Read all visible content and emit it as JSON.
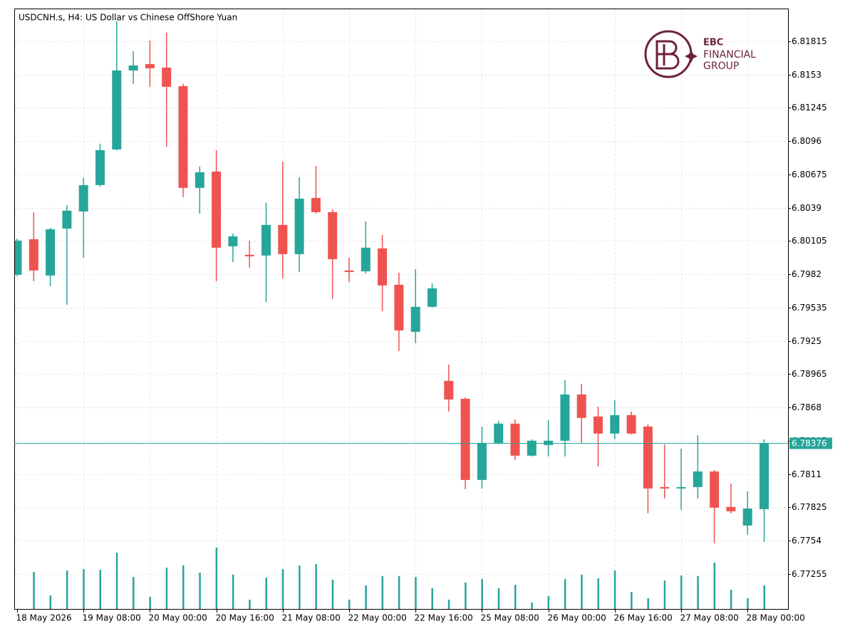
{
  "chart_data": {
    "type": "candlestick",
    "title": "USDCNH.s, H4:  US Dollar vs Chinese OffShore Yuan",
    "logo": {
      "name": "EBC",
      "line1": "FINANCIAL",
      "line2": "GROUP"
    },
    "categories": [
      "18 May 2026",
      null,
      null,
      null,
      "19 May 08:00",
      null,
      null,
      null,
      "20 May 00:00",
      null,
      null,
      null,
      "20 May 16:00",
      null,
      null,
      null,
      "21 May 08:00",
      null,
      null,
      null,
      "22 May 00:00",
      null,
      null,
      null,
      "22 May 16:00",
      null,
      null,
      null,
      "25 May 08:00",
      null,
      null,
      null,
      "26 May 00:00",
      null,
      null,
      null,
      "26 May 16:00",
      null,
      null,
      null,
      "27 May 08:00",
      null,
      null,
      null,
      "28 May 00:00",
      null
    ],
    "open": [
      6.79816,
      6.80121,
      6.7981,
      6.80212,
      6.80358,
      6.80584,
      6.80889,
      6.81565,
      6.8162,
      6.8159,
      6.81431,
      6.8056,
      6.807,
      6.8006,
      6.79987,
      6.79981,
      6.80243,
      6.79993,
      6.80474,
      6.80352,
      6.79853,
      6.79846,
      6.80042,
      6.79731,
      6.79328,
      6.79542,
      6.78908,
      6.78755,
      6.7806,
      6.78377,
      6.78542,
      6.78268,
      6.78359,
      6.78396,
      6.78792,
      6.78603,
      6.78457,
      6.78615,
      6.78517,
      6.77999,
      6.77987,
      6.77999,
      6.78133,
      6.77829,
      6.7767,
      6.7781
    ],
    "high": [
      6.80127,
      6.80352,
      6.80218,
      6.80413,
      6.80645,
      6.80938,
      6.81986,
      6.8173,
      6.81822,
      6.81889,
      6.8145,
      6.80743,
      6.80883,
      6.80169,
      6.80109,
      6.80432,
      6.80785,
      6.80651,
      6.80749,
      6.80377,
      6.79962,
      6.80273,
      6.80157,
      6.79834,
      6.79865,
      6.79743,
      6.79048,
      6.78767,
      6.78517,
      6.78566,
      6.78578,
      6.78408,
      6.78572,
      6.78914,
      6.78883,
      6.78688,
      6.78743,
      6.78646,
      6.78536,
      6.78365,
      6.78329,
      6.78444,
      6.78146,
      6.7803,
      6.77963,
      6.78408
    ],
    "low": [
      6.79804,
      6.79761,
      6.79718,
      6.7956,
      6.79962,
      6.80572,
      6.80883,
      6.8145,
      6.81425,
      6.80913,
      6.8048,
      6.8034,
      6.79761,
      6.79926,
      6.79877,
      6.79584,
      6.79785,
      6.7984,
      6.8034,
      6.79609,
      6.79755,
      6.79828,
      6.79505,
      6.79164,
      6.79231,
      6.79535,
      6.78646,
      6.77981,
      6.77987,
      6.78365,
      6.78231,
      6.78261,
      6.78261,
      6.78261,
      6.78377,
      6.78176,
      6.78408,
      6.7845,
      6.77774,
      6.77902,
      6.77804,
      6.77902,
      6.77518,
      6.77774,
      6.77591,
      6.7753
    ],
    "close": [
      6.80109,
      6.79853,
      6.80206,
      6.80365,
      6.80584,
      6.80883,
      6.81565,
      6.81608,
      6.81584,
      6.81425,
      6.8056,
      6.80694,
      6.80048,
      6.80145,
      6.79974,
      6.80243,
      6.79993,
      6.80468,
      6.80352,
      6.7995,
      6.7984,
      6.80048,
      6.79725,
      6.7934,
      6.79542,
      6.797,
      6.78749,
      6.7806,
      6.78377,
      6.78542,
      6.78268,
      6.78396,
      6.78396,
      6.78792,
      6.78591,
      6.78457,
      6.78615,
      6.78457,
      6.77987,
      6.77987,
      6.77999,
      6.78133,
      6.77823,
      6.77792,
      6.77816,
      6.78376
    ],
    "volume": [
      null,
      52,
      19,
      54,
      56,
      55,
      79,
      45,
      17,
      58,
      61,
      51,
      86,
      48,
      13,
      44,
      56,
      61,
      63,
      41,
      13,
      33,
      46,
      46,
      45,
      29,
      13,
      37,
      42,
      29,
      34,
      9,
      18,
      42,
      48,
      43,
      54,
      24,
      15,
      40,
      47,
      46,
      65,
      27,
      15,
      33
    ],
    "volume_lim": [
      0,
      100
    ],
    "up_color": "#26a69a",
    "down_color": "#ef5350",
    "volume_color": "#26a69a",
    "current_price": 6.78376,
    "ylim": [
      6.76956,
      6.82095
    ],
    "yticks": [
      6.81815,
      6.8153,
      6.81245,
      6.8096,
      6.80675,
      6.8039,
      6.80105,
      6.7982,
      6.79535,
      6.7925,
      6.78965,
      6.7868,
      6.78395,
      6.7811,
      6.77825,
      6.7754,
      6.77255
    ],
    "grid": true
  }
}
